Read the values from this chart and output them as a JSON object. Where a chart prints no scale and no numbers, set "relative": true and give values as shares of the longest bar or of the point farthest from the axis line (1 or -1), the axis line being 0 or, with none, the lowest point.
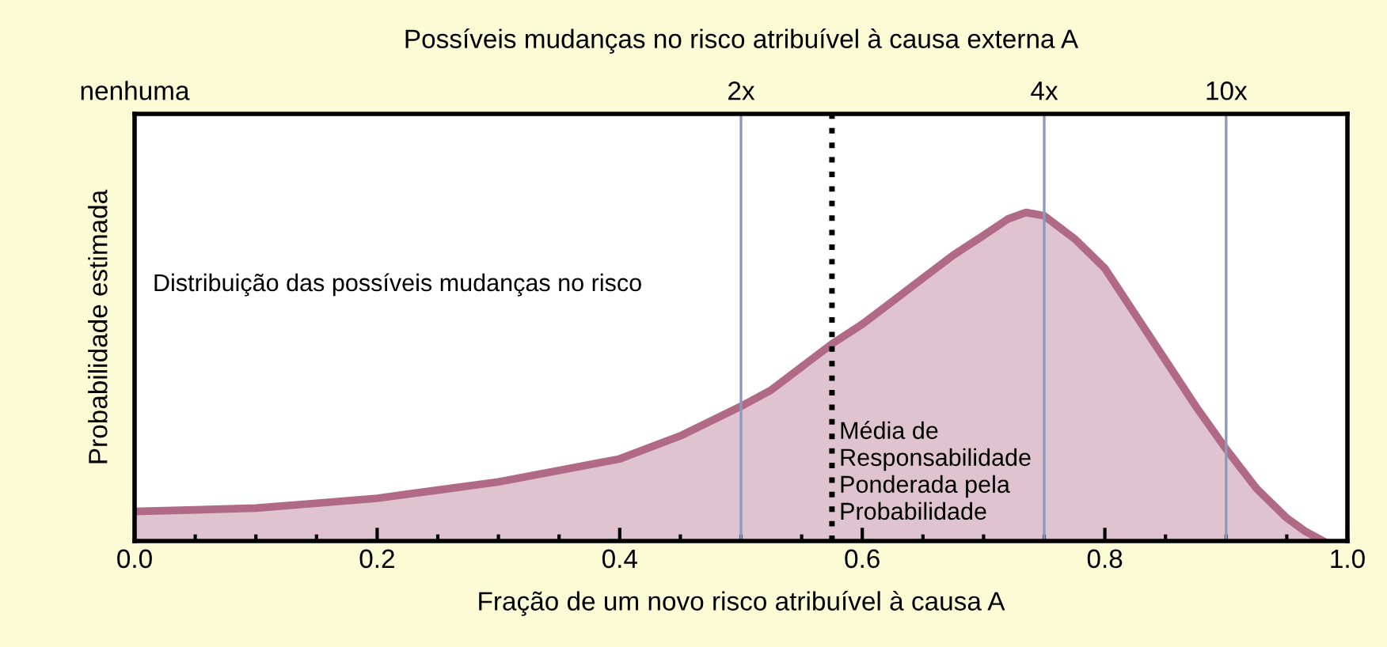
{
  "chart_data": {
    "type": "area",
    "relative": true,
    "title": "Possíveis mudanças no risco atribuível à causa externa A",
    "xlabel": "Fração de um novo risco atribuível à causa A",
    "ylabel": "Probabilidade estimada",
    "x": [
      0,
      0.05,
      0.1,
      0.15,
      0.2,
      0.25,
      0.3,
      0.35,
      0.4,
      0.45,
      0.5,
      0.525,
      0.55,
      0.575,
      0.6,
      0.625,
      0.65,
      0.675,
      0.7,
      0.72,
      0.735,
      0.75,
      0.775,
      0.8,
      0.825,
      0.85,
      0.875,
      0.9,
      0.925,
      0.95,
      0.965,
      0.98
    ],
    "series": [
      {
        "color": "#b06a86",
        "values": [
          0.09,
          0.095,
          0.1,
          0.115,
          0.13,
          0.155,
          0.18,
          0.215,
          0.25,
          0.32,
          0.41,
          0.46,
          0.53,
          0.6,
          0.66,
          0.73,
          0.8,
          0.87,
          0.93,
          0.98,
          1.0,
          0.99,
          0.92,
          0.83,
          0.69,
          0.55,
          0.41,
          0.28,
          0.16,
          0.07,
          0.03,
          0.0
        ]
      }
    ],
    "xlim": [
      0,
      1
    ],
    "xticks": [
      {
        "value": 0,
        "label": "0.0"
      },
      0.2,
      0.4,
      0.6,
      0.8,
      {
        "value": 1,
        "label": "1.0"
      }
    ],
    "ref_lines": [
      {
        "axis": "x",
        "value": 0.5,
        "label": "2x",
        "color": "#8a9bbf",
        "line_style": "solid"
      },
      {
        "axis": "x",
        "value": 0.75,
        "label": "4x",
        "color": "#8a9bbf",
        "line_style": "solid"
      },
      {
        "axis": "x",
        "value": 0.9,
        "label": "10x",
        "color": "#8a9bbf",
        "line_style": "solid"
      },
      {
        "axis": "x",
        "value": 0.575,
        "label": "Média de\nResponsabilidade\nPonderada pela\nProbabilidade",
        "color": "#000000",
        "line_style": "dotted"
      }
    ],
    "annotations": [
      "Distribuição das possíveis mudanças no risco",
      "nenhuma"
    ],
    "grid": false,
    "legend": false
  }
}
